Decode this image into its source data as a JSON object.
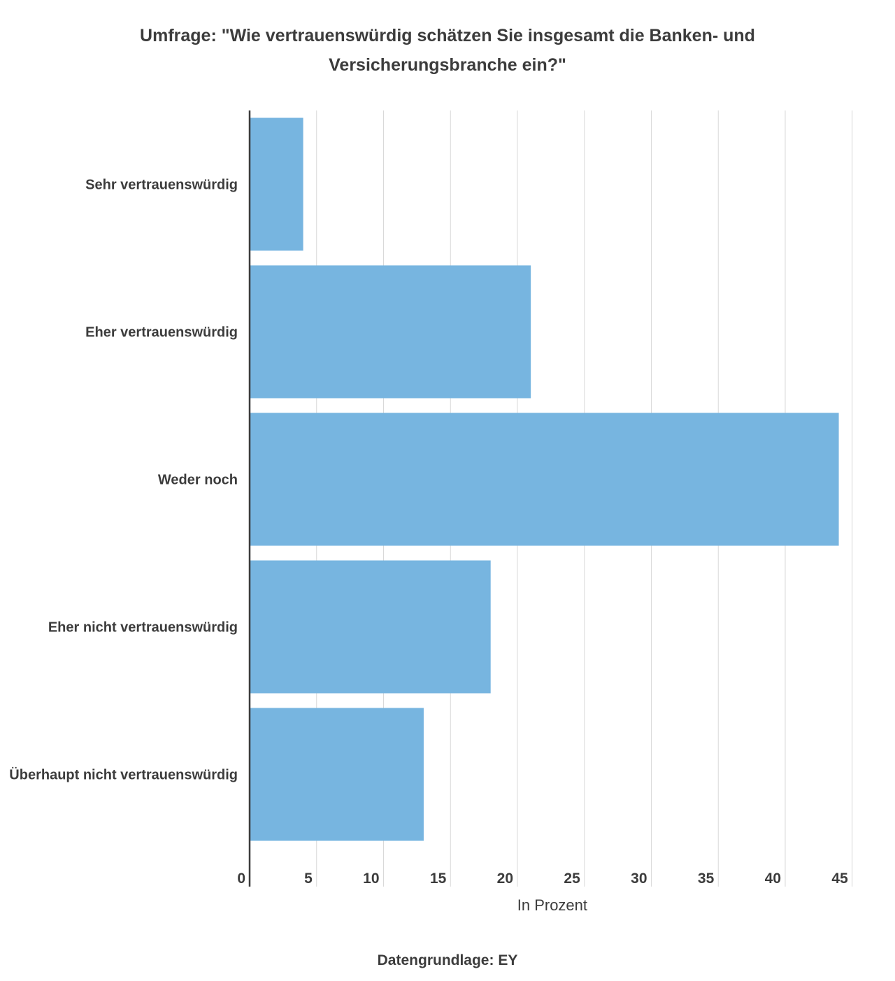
{
  "title_line1": "Umfrage: \"Wie vertrauenswürdig schätzen Sie insgesamt die Banken- und",
  "title_line2": "Versicherungsbranche ein?\"",
  "source": "Datengrundlage: EY",
  "colors": {
    "bar": "#77b5e0",
    "grid": "#d9d9d9",
    "axis": "#3c3c3c",
    "text": "#3c3c3c"
  },
  "chart_data": {
    "type": "bar",
    "orientation": "horizontal",
    "title": "Umfrage: \"Wie vertrauenswürdig schätzen Sie insgesamt die Banken- und Versicherungsbranche ein?\"",
    "categories": [
      "Sehr vertrauenswürdig",
      "Eher vertrauenswürdig",
      "Weder noch",
      "Eher nicht vertrauenswürdig",
      "Überhaupt nicht vertrauenswürdig"
    ],
    "values": [
      4,
      21,
      44,
      18,
      13
    ],
    "xlabel": "In Prozent",
    "ylabel": "",
    "xlim": [
      0,
      45
    ],
    "xticks": [
      0,
      5,
      10,
      15,
      20,
      25,
      30,
      35,
      40,
      45
    ],
    "grid": true,
    "legend": "none"
  }
}
